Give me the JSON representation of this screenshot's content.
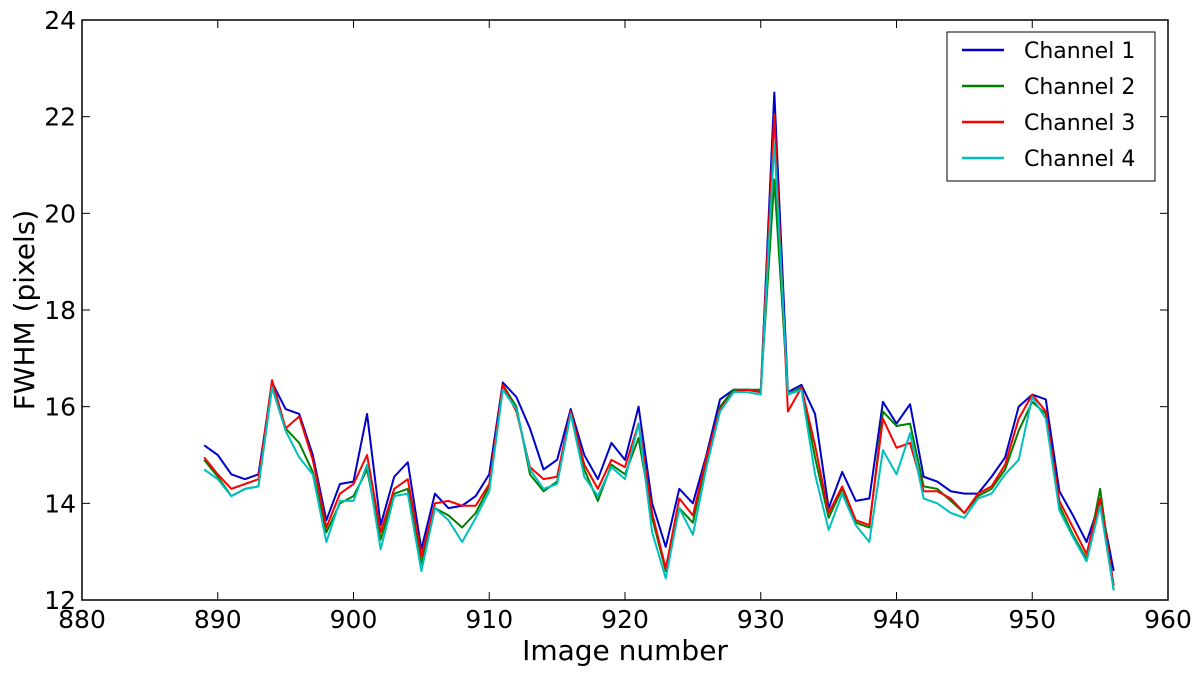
{
  "chart_data": {
    "type": "line",
    "title": "",
    "xlabel": "Image number",
    "ylabel": "FWHM (pixels)",
    "xlim": [
      880,
      960
    ],
    "ylim": [
      12,
      24
    ],
    "xticks": [
      880,
      890,
      900,
      910,
      920,
      930,
      940,
      950,
      960
    ],
    "yticks": [
      12,
      14,
      16,
      18,
      20,
      22,
      24
    ],
    "grid": false,
    "legend_position": "top-right",
    "x": [
      889,
      890,
      891,
      892,
      893,
      894,
      895,
      896,
      897,
      898,
      899,
      900,
      901,
      902,
      903,
      904,
      905,
      906,
      907,
      908,
      909,
      910,
      911,
      912,
      913,
      914,
      915,
      916,
      917,
      918,
      919,
      920,
      921,
      922,
      923,
      924,
      925,
      926,
      927,
      928,
      929,
      930,
      931,
      932,
      933,
      934,
      935,
      936,
      937,
      938,
      939,
      940,
      941,
      942,
      943,
      944,
      945,
      946,
      947,
      948,
      949,
      950,
      951,
      952,
      953,
      954,
      955,
      956
    ],
    "series": [
      {
        "name": "Channel 1",
        "color": "#0000cc",
        "values": [
          15.2,
          15.0,
          14.6,
          14.5,
          14.6,
          16.5,
          15.95,
          15.85,
          15.0,
          13.65,
          14.4,
          14.45,
          15.85,
          13.55,
          14.55,
          14.85,
          13.05,
          14.2,
          13.9,
          13.95,
          14.15,
          14.6,
          16.5,
          16.2,
          15.55,
          14.7,
          14.9,
          15.95,
          15.0,
          14.5,
          15.25,
          14.9,
          16.0,
          14.0,
          13.1,
          14.3,
          14.0,
          15.0,
          16.15,
          16.35,
          16.35,
          16.3,
          22.5,
          16.3,
          16.45,
          15.85,
          13.9,
          14.65,
          14.05,
          14.1,
          16.1,
          15.65,
          16.05,
          14.55,
          14.45,
          14.25,
          14.2,
          14.2,
          14.55,
          14.95,
          16.0,
          16.25,
          16.15,
          14.25,
          13.75,
          13.2,
          14.05,
          12.6
        ]
      },
      {
        "name": "Channel 2",
        "color": "#008000",
        "values": [
          14.9,
          14.55,
          14.15,
          14.3,
          14.35,
          16.4,
          15.55,
          15.25,
          14.65,
          13.4,
          14.0,
          14.15,
          14.7,
          13.25,
          14.2,
          14.3,
          12.75,
          13.9,
          13.75,
          13.5,
          13.8,
          14.35,
          16.45,
          16.0,
          14.6,
          14.25,
          14.45,
          15.85,
          14.7,
          14.05,
          14.8,
          14.6,
          15.35,
          13.7,
          12.6,
          13.9,
          13.6,
          14.9,
          16.0,
          16.35,
          16.35,
          16.35,
          20.7,
          16.25,
          16.4,
          14.95,
          13.7,
          14.3,
          13.6,
          13.5,
          15.9,
          15.6,
          15.65,
          14.35,
          14.3,
          14.05,
          13.8,
          14.15,
          14.3,
          14.7,
          15.5,
          16.1,
          15.85,
          13.95,
          13.35,
          12.85,
          14.3,
          12.2
        ]
      },
      {
        "name": "Channel 3",
        "color": "#ff0000",
        "values": [
          14.95,
          14.6,
          14.3,
          14.4,
          14.5,
          16.55,
          15.55,
          15.8,
          14.9,
          13.5,
          14.2,
          14.4,
          15.0,
          13.4,
          14.3,
          14.5,
          12.9,
          14.0,
          14.05,
          13.95,
          13.95,
          14.4,
          16.45,
          15.9,
          14.75,
          14.5,
          14.55,
          15.9,
          14.8,
          14.3,
          14.9,
          14.75,
          15.65,
          13.8,
          12.65,
          14.1,
          13.75,
          14.95,
          15.95,
          16.3,
          16.35,
          16.3,
          22.05,
          15.9,
          16.4,
          15.2,
          13.8,
          14.35,
          13.65,
          13.55,
          15.75,
          15.15,
          15.25,
          14.25,
          14.25,
          14.1,
          13.8,
          14.2,
          14.35,
          14.8,
          15.75,
          16.25,
          15.9,
          14.05,
          13.5,
          12.95,
          14.1,
          12.3
        ]
      },
      {
        "name": "Channel 4",
        "color": "#00bfbf",
        "values": [
          14.7,
          14.5,
          14.15,
          14.3,
          14.35,
          16.4,
          15.5,
          14.95,
          14.6,
          13.2,
          14.05,
          14.05,
          14.8,
          13.05,
          14.15,
          14.2,
          12.6,
          13.9,
          13.65,
          13.2,
          13.7,
          14.25,
          16.35,
          15.95,
          14.7,
          14.3,
          14.4,
          15.85,
          14.55,
          14.15,
          14.75,
          14.5,
          15.65,
          13.4,
          12.45,
          13.9,
          13.35,
          14.75,
          15.9,
          16.3,
          16.3,
          16.25,
          21.45,
          16.25,
          16.35,
          14.6,
          13.45,
          14.2,
          13.55,
          13.2,
          15.1,
          14.6,
          15.45,
          14.1,
          14.0,
          13.8,
          13.7,
          14.1,
          14.2,
          14.6,
          14.9,
          16.2,
          15.75,
          13.85,
          13.3,
          12.8,
          13.95,
          12.2
        ]
      }
    ]
  }
}
